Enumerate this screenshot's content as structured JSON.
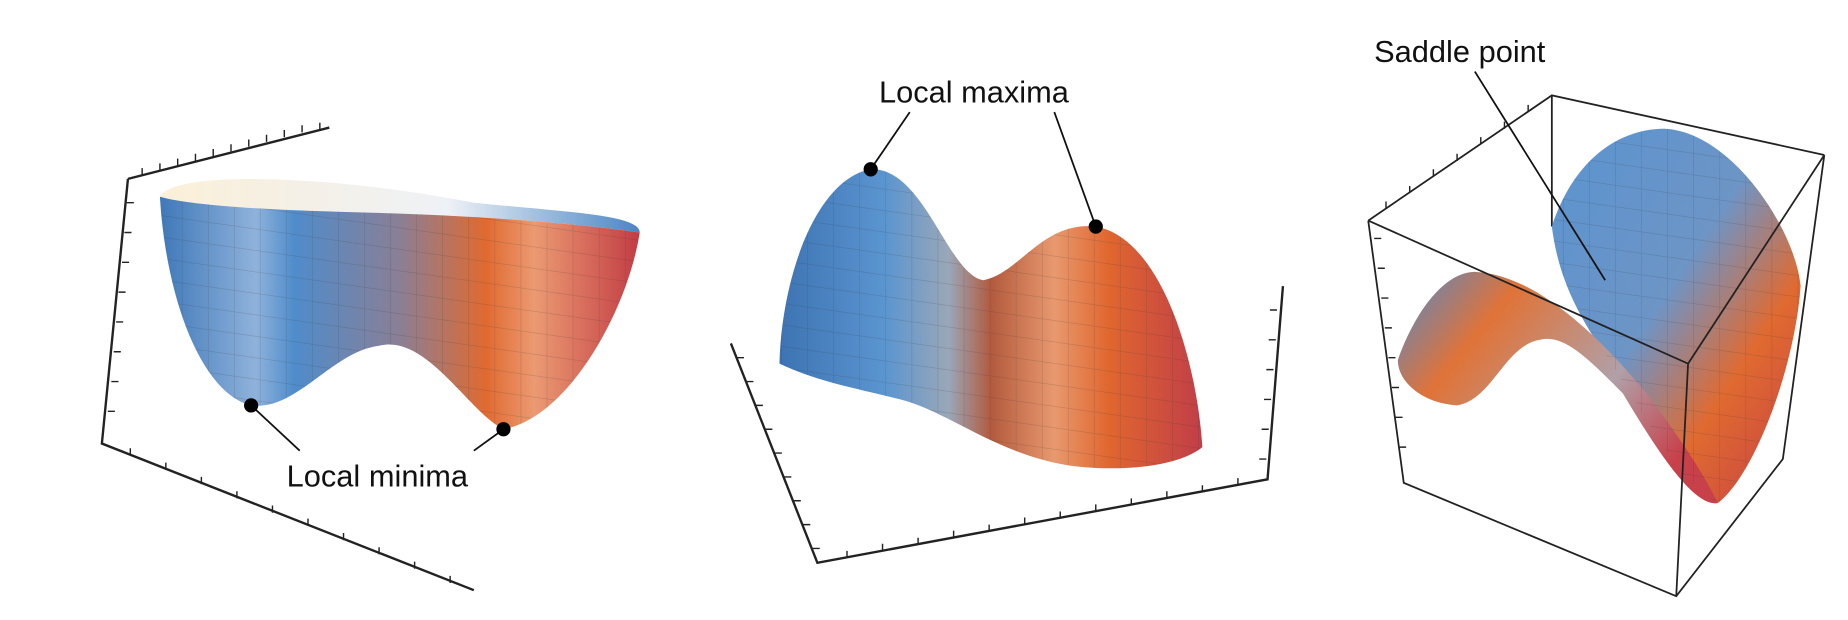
{
  "panels": [
    {
      "id": "bowl",
      "label": "Local minima",
      "points": 2
    },
    {
      "id": "hills",
      "label": "Local maxima",
      "points": 2
    },
    {
      "id": "saddle",
      "label": "Saddle point",
      "points": 1
    }
  ],
  "colors": {
    "blue": "#4a86c5",
    "orange": "#e0733a",
    "red": "#c0414a",
    "cream": "#fbf3e2"
  }
}
